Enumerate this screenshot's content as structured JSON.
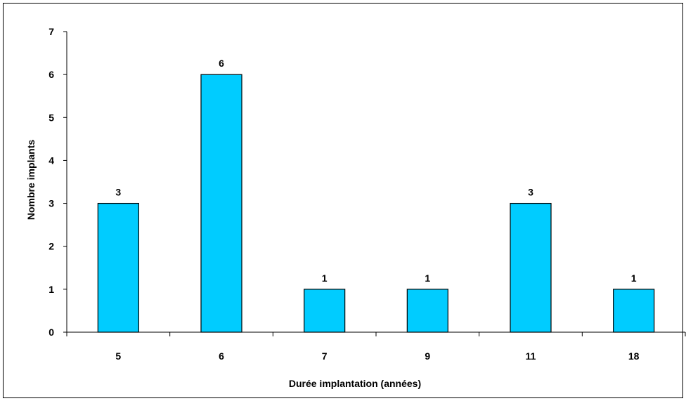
{
  "chart_data": {
    "type": "bar",
    "categories": [
      "5",
      "6",
      "7",
      "9",
      "11",
      "18"
    ],
    "values": [
      3,
      6,
      1,
      1,
      3,
      1
    ],
    "data_labels": [
      "3",
      "6",
      "1",
      "1",
      "3",
      "1"
    ],
    "title": "",
    "xlabel": "Durée implantation (années)",
    "ylabel": "Nombre implants",
    "ylim": [
      0,
      7
    ],
    "yticks": [
      "0",
      "1",
      "2",
      "3",
      "4",
      "5",
      "6",
      "7"
    ],
    "grid": false,
    "legend": "none",
    "bar_color": "#00CCFF",
    "bar_edge_color": "#000000"
  }
}
